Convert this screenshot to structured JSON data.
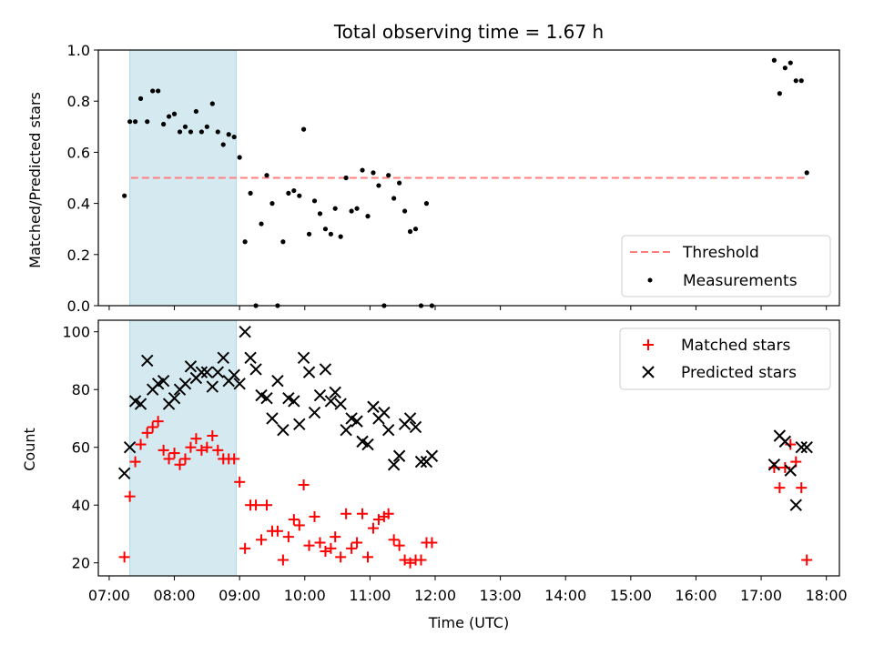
{
  "chart_data": [
    {
      "type": "scatter",
      "title": "Total observing time = 1.67 h",
      "xlabel": "",
      "ylabel": "Matched/Predicted stars",
      "xlim": [
        "06:50",
        "18:12"
      ],
      "ylim": [
        0,
        1.0
      ],
      "yticks": [
        "0.0",
        "0.2",
        "0.4",
        "0.6",
        "0.8",
        "1.0"
      ],
      "shaded_interval": [
        "07:19",
        "08:57"
      ],
      "shade_color": "#d4e9f0",
      "threshold": {
        "name": "Threshold",
        "value": 0.5,
        "x_range": [
          "07:20",
          "17:40"
        ],
        "color": "#ff7f7f",
        "style": "dashed"
      },
      "legend": {
        "position": "lower right",
        "entries": [
          "Threshold",
          "Measurements"
        ]
      },
      "series": [
        {
          "name": "Measurements",
          "marker": "dot",
          "color": "#000000",
          "x": [
            "07:14",
            "07:19",
            "07:24",
            "07:29",
            "07:35",
            "07:40",
            "07:45",
            "07:50",
            "07:55",
            "08:00",
            "08:05",
            "08:10",
            "08:15",
            "08:20",
            "08:25",
            "08:30",
            "08:35",
            "08:40",
            "08:45",
            "08:50",
            "08:55",
            "09:00",
            "09:05",
            "09:10",
            "09:15",
            "09:20",
            "09:25",
            "09:30",
            "09:35",
            "09:40",
            "09:45",
            "09:50",
            "09:55",
            "09:59",
            "10:04",
            "10:09",
            "10:14",
            "10:19",
            "10:24",
            "10:28",
            "10:33",
            "10:38",
            "10:43",
            "10:48",
            "10:53",
            "10:58",
            "11:03",
            "11:08",
            "11:13",
            "11:17",
            "11:22",
            "11:27",
            "11:32",
            "11:37",
            "11:42",
            "11:47",
            "11:52",
            "11:57",
            "17:12",
            "17:17",
            "17:22",
            "17:27",
            "17:32",
            "17:37",
            "17:42"
          ],
          "y": [
            0.43,
            0.72,
            0.72,
            0.81,
            0.72,
            0.84,
            0.84,
            0.71,
            0.74,
            0.75,
            0.68,
            0.7,
            0.68,
            0.76,
            0.68,
            0.7,
            0.79,
            0.68,
            0.63,
            0.67,
            0.66,
            0.58,
            0.25,
            0.44,
            0.0,
            0.32,
            0.51,
            0.4,
            0.0,
            0.25,
            0.44,
            0.45,
            0.43,
            0.69,
            0.28,
            0.41,
            0.36,
            0.3,
            0.28,
            0.38,
            0.27,
            0.5,
            0.37,
            0.38,
            0.53,
            0.35,
            0.52,
            0.47,
            0.0,
            0.51,
            0.42,
            0.48,
            0.37,
            0.29,
            0.3,
            0.0,
            0.4,
            0.0,
            0.96,
            0.83,
            0.93,
            0.95,
            0.88,
            0.88,
            0.52
          ]
        }
      ]
    },
    {
      "type": "scatter",
      "title": "",
      "xlabel": "Time (UTC)",
      "ylabel": "Count",
      "xlim": [
        "06:50",
        "18:12"
      ],
      "ylim": [
        15.5,
        104
      ],
      "yticks": [
        "20",
        "40",
        "60",
        "80",
        "100"
      ],
      "xticks": [
        "07:00",
        "08:00",
        "09:00",
        "10:00",
        "11:00",
        "12:00",
        "13:00",
        "14:00",
        "15:00",
        "16:00",
        "17:00",
        "18:00"
      ],
      "shaded_interval": [
        "07:19",
        "08:57"
      ],
      "shade_color": "#d4e9f0",
      "legend": {
        "position": "upper right",
        "entries": [
          "Matched stars",
          "Predicted stars"
        ]
      },
      "series": [
        {
          "name": "Matched stars",
          "marker": "plus",
          "color": "#ff0000",
          "x": [
            "07:14",
            "07:19",
            "07:24",
            "07:29",
            "07:35",
            "07:40",
            "07:45",
            "07:50",
            "07:55",
            "08:00",
            "08:05",
            "08:10",
            "08:15",
            "08:20",
            "08:25",
            "08:30",
            "08:35",
            "08:40",
            "08:45",
            "08:50",
            "08:55",
            "09:00",
            "09:05",
            "09:10",
            "09:15",
            "09:20",
            "09:25",
            "09:30",
            "09:35",
            "09:40",
            "09:45",
            "09:50",
            "09:55",
            "09:59",
            "10:04",
            "10:09",
            "10:14",
            "10:19",
            "10:24",
            "10:28",
            "10:33",
            "10:38",
            "10:43",
            "10:48",
            "10:53",
            "10:58",
            "11:03",
            "11:08",
            "11:13",
            "11:17",
            "11:22",
            "11:27",
            "11:32",
            "11:37",
            "11:42",
            "11:47",
            "11:52",
            "11:57",
            "17:12",
            "17:17",
            "17:22",
            "17:27",
            "17:32",
            "17:37",
            "17:42"
          ],
          "y": [
            22,
            43,
            55,
            61,
            65,
            67,
            69,
            59,
            56,
            58,
            54,
            56,
            60,
            63,
            59,
            60,
            64,
            59,
            56,
            56,
            56,
            48,
            25,
            40,
            40,
            28,
            40,
            31,
            31,
            21,
            29,
            35,
            33,
            47,
            26,
            36,
            27,
            24,
            25,
            29,
            22,
            37,
            25,
            27,
            37,
            22,
            32,
            35,
            36,
            37,
            28,
            26,
            21,
            20,
            21,
            21,
            27,
            27,
            53,
            46,
            53,
            61,
            55,
            46,
            21
          ]
        },
        {
          "name": "Predicted stars",
          "marker": "x",
          "color": "#000000",
          "x": [
            "07:14",
            "07:19",
            "07:24",
            "07:29",
            "07:35",
            "07:40",
            "07:45",
            "07:50",
            "07:55",
            "08:00",
            "08:05",
            "08:10",
            "08:15",
            "08:20",
            "08:25",
            "08:30",
            "08:35",
            "08:40",
            "08:45",
            "08:50",
            "08:55",
            "09:00",
            "09:05",
            "09:10",
            "09:15",
            "09:20",
            "09:25",
            "09:30",
            "09:35",
            "09:40",
            "09:45",
            "09:50",
            "09:55",
            "09:59",
            "10:04",
            "10:09",
            "10:14",
            "10:19",
            "10:24",
            "10:28",
            "10:33",
            "10:38",
            "10:43",
            "10:48",
            "10:53",
            "10:58",
            "11:03",
            "11:08",
            "11:13",
            "11:17",
            "11:22",
            "11:27",
            "11:32",
            "11:37",
            "11:42",
            "11:47",
            "11:52",
            "11:57",
            "17:12",
            "17:17",
            "17:22",
            "17:27",
            "17:32",
            "17:37",
            "17:42"
          ],
          "y": [
            51,
            60,
            76,
            75,
            90,
            80,
            82,
            83,
            75,
            77,
            80,
            82,
            88,
            84,
            86,
            86,
            81,
            86,
            91,
            83,
            85,
            82,
            100,
            91,
            87,
            78,
            77,
            70,
            83,
            66,
            77,
            76,
            68,
            91,
            86,
            72,
            78,
            87,
            76,
            79,
            75,
            66,
            70,
            69,
            62,
            61,
            74,
            70,
            72,
            66,
            54,
            57,
            68,
            70,
            67,
            55,
            55,
            57,
            54,
            64,
            62,
            52,
            40,
            60,
            60
          ]
        }
      ]
    }
  ]
}
